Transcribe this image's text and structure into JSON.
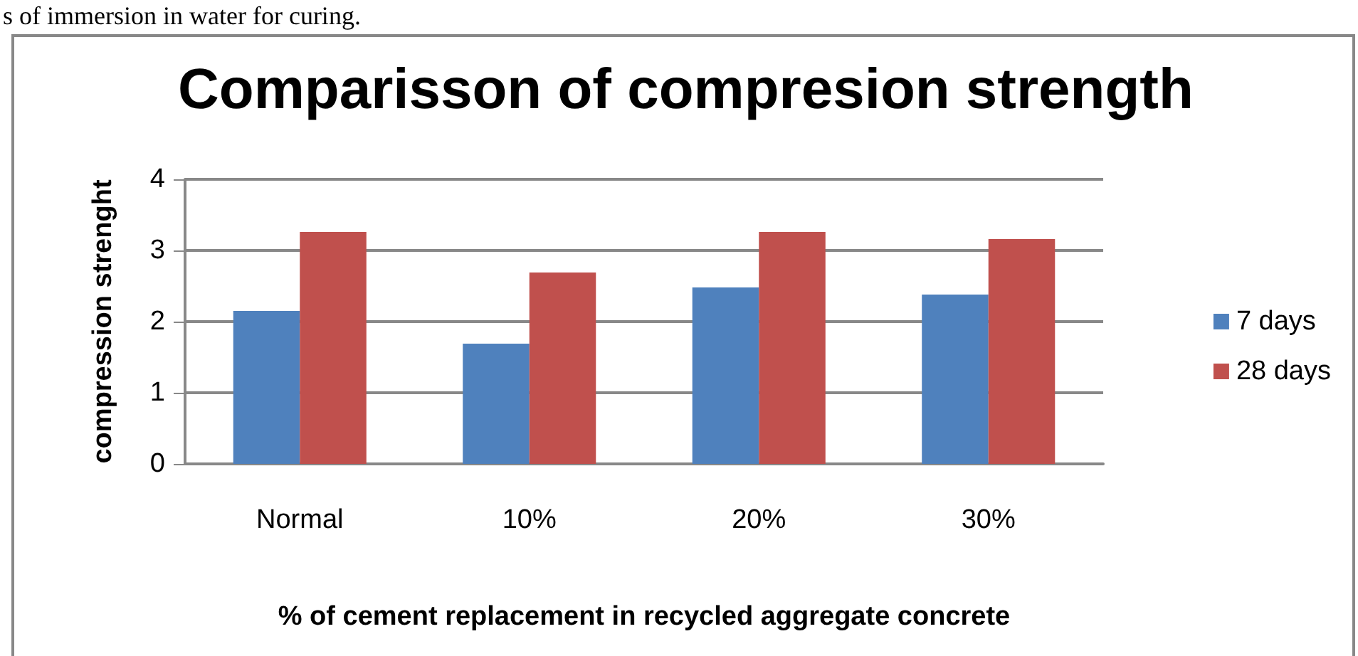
{
  "chart_data": {
    "type": "bar",
    "title": "Comparisson of compresion strength",
    "xlabel": "% of cement replacement in recycled aggregate concrete",
    "ylabel": "compression strenght",
    "annotations": [
      "s of immersion in water for curing."
    ],
    "categories": [
      "Normal",
      "10%",
      "20%",
      "30%"
    ],
    "series": [
      {
        "name": "7 days",
        "color": "#4f81bd",
        "values": [
          2.15,
          1.69,
          2.48,
          2.38
        ]
      },
      {
        "name": "28 days",
        "color": "#c0504d",
        "values": [
          3.26,
          2.69,
          3.26,
          3.16
        ]
      }
    ],
    "ylim": [
      0,
      4
    ],
    "yticks": [
      0,
      1,
      2,
      3,
      4
    ],
    "grid": "y",
    "legend": "right"
  }
}
